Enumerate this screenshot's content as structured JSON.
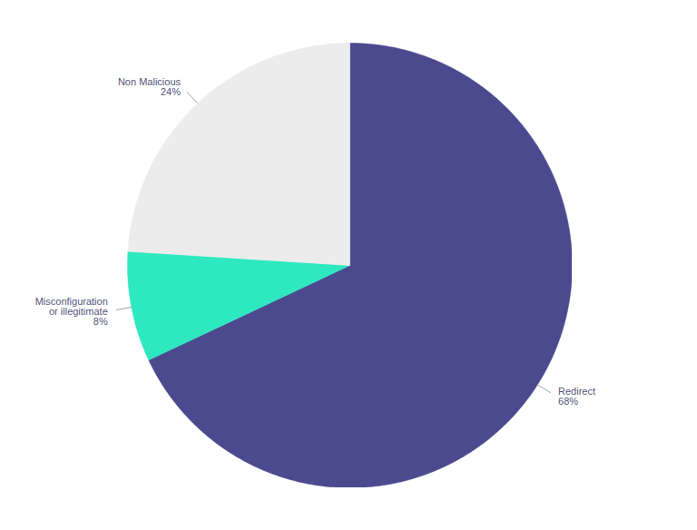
{
  "chart_data": {
    "type": "pie",
    "categories": [
      "Redirect",
      "Misconfiguration or illegitimate",
      "Non Malicious"
    ],
    "values": [
      68,
      8,
      24
    ],
    "value_labels": [
      "68%",
      "8%",
      "24%"
    ],
    "colors": [
      "#4b4a8f",
      "#2ee8c0",
      "#ececec"
    ],
    "data_labels": true
  }
}
